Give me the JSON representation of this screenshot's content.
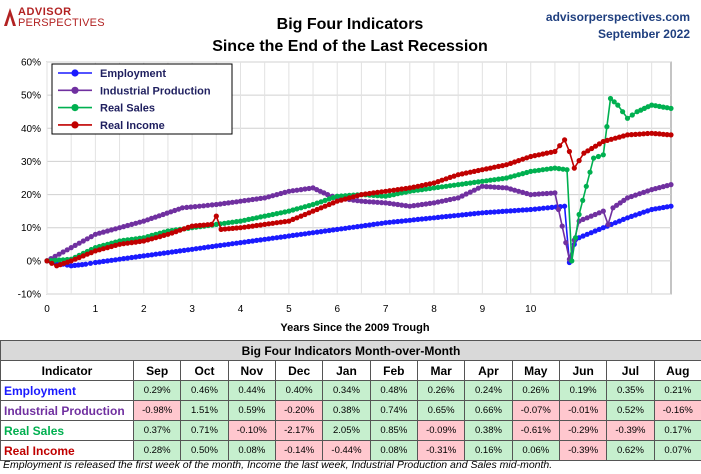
{
  "header": {
    "logo_line1": "ADVISOR",
    "logo_line2": "PERSPECTIVES",
    "title_line1": "Big Four Indicators",
    "title_line2": "Since the End of the Last Recession",
    "site": "advisorperspectives.com",
    "date": "September 2022"
  },
  "colors": {
    "Employment": "#1a1aff",
    "Industrial Production": "#7030a0",
    "Real Sales": "#00b050",
    "Real Income": "#c00000",
    "positive_cell": "#c6efce",
    "negative_cell": "#ffc7ce"
  },
  "chart_data": {
    "type": "line",
    "title": "Big Four Indicators Since the End of the Last Recession",
    "xlabel": "Years Since the 2009 Trough",
    "ylabel": "",
    "xlim": [
      0,
      12.9
    ],
    "ylim": [
      -10,
      60
    ],
    "x_ticks": [
      0,
      1,
      2,
      3,
      4,
      5,
      6,
      7,
      8,
      9,
      10
    ],
    "y_ticks": [
      "-10%",
      "0%",
      "10%",
      "20%",
      "30%",
      "40%",
      "50%",
      "60%"
    ],
    "y_tick_values": [
      -10,
      0,
      10,
      20,
      30,
      40,
      50,
      60
    ],
    "grid": true,
    "legend_position": "top-left",
    "series": [
      {
        "name": "Employment",
        "color": "#1a1aff",
        "x": [
          0,
          0.5,
          0.8,
          1,
          2,
          3,
          4,
          5,
          6,
          7,
          8,
          9,
          10,
          10.7,
          10.8,
          10.9,
          11.0,
          11.5,
          12,
          12.5,
          12.9
        ],
        "y": [
          0,
          -1.5,
          -1,
          -0.5,
          1.5,
          3.5,
          5.5,
          7.5,
          9.5,
          11.5,
          13,
          14.5,
          15.5,
          16.5,
          -0.5,
          5,
          7,
          10,
          13,
          15.5,
          16.5
        ]
      },
      {
        "name": "Industrial Production",
        "color": "#7030a0",
        "x": [
          0,
          0.5,
          1,
          2,
          2.8,
          3.5,
          4,
          4.5,
          5,
          5.5,
          5.8,
          6,
          6.5,
          7,
          7.5,
          8,
          8.5,
          9,
          9.5,
          10,
          10.5,
          10.8,
          11.0,
          11.5,
          11.6,
          11.7,
          12,
          12.5,
          12.9
        ],
        "y": [
          0,
          4,
          8,
          12,
          16,
          17,
          18,
          19,
          21,
          22,
          20,
          19,
          18,
          17.5,
          16.5,
          17.5,
          19,
          22.5,
          22,
          20,
          20.5,
          0.5,
          12,
          15,
          11,
          16,
          19,
          21.5,
          23
        ]
      },
      {
        "name": "Real Sales",
        "color": "#00b050",
        "x": [
          0,
          0.5,
          1,
          1.5,
          2,
          2.5,
          3,
          3.5,
          4,
          4.5,
          5,
          5.5,
          6,
          6.5,
          7,
          7.5,
          8,
          8.5,
          9,
          9.5,
          10,
          10.5,
          10.75,
          10.85,
          11.0,
          11.3,
          11.5,
          11.65,
          11.8,
          12,
          12.2,
          12.5,
          12.9
        ],
        "y": [
          0,
          0.5,
          4,
          6,
          7,
          9,
          10,
          11,
          12,
          13.5,
          15,
          17,
          19.5,
          20,
          19.5,
          21,
          22,
          23,
          24,
          25,
          27,
          28,
          27.5,
          0,
          14,
          31,
          32,
          49,
          47,
          43,
          45,
          47,
          46
        ]
      },
      {
        "name": "Real Income",
        "color": "#c00000",
        "x": [
          0,
          0.2,
          0.5,
          1,
          1.5,
          2,
          2.5,
          3,
          3.4,
          3.5,
          3.6,
          4,
          4.5,
          5,
          5.5,
          6,
          6.5,
          7,
          7.5,
          8,
          8.5,
          9,
          9.5,
          10,
          10.5,
          10.7,
          10.8,
          10.9,
          11.1,
          11.5,
          12,
          12.5,
          12.9
        ],
        "y": [
          0,
          -1.5,
          0,
          3,
          5,
          6,
          8,
          10.5,
          11,
          13.5,
          9.5,
          10,
          11,
          12,
          15,
          18,
          20,
          21,
          22,
          23.5,
          26,
          27.5,
          29,
          31.5,
          33,
          36.5,
          33,
          28,
          32.5,
          36,
          38,
          38.5,
          38
        ]
      }
    ]
  },
  "table": {
    "caption": "Big Four Indicators Month-over-Month",
    "header": [
      "Indicator",
      "Sep",
      "Oct",
      "Nov",
      "Dec",
      "Jan",
      "Feb",
      "Mar",
      "Apr",
      "May",
      "Jun",
      "Jul",
      "Aug"
    ],
    "rows": [
      {
        "name": "Employment",
        "values": [
          "0.29%",
          "0.46%",
          "0.44%",
          "0.40%",
          "0.34%",
          "0.48%",
          "0.26%",
          "0.24%",
          "0.26%",
          "0.19%",
          "0.35%",
          "0.21%"
        ]
      },
      {
        "name": "Industrial Production",
        "values": [
          "-0.98%",
          "1.51%",
          "0.59%",
          "-0.20%",
          "0.38%",
          "0.74%",
          "0.65%",
          "0.66%",
          "-0.07%",
          "-0.01%",
          "0.52%",
          "-0.16%"
        ]
      },
      {
        "name": "Real Sales",
        "values": [
          "0.37%",
          "0.71%",
          "-0.10%",
          "-2.17%",
          "2.05%",
          "0.85%",
          "-0.09%",
          "0.38%",
          "-0.61%",
          "-0.29%",
          "-0.39%",
          "0.17%"
        ]
      },
      {
        "name": "Real Income",
        "values": [
          "0.28%",
          "0.50%",
          "0.08%",
          "-0.14%",
          "-0.44%",
          "0.08%",
          "-0.31%",
          "0.16%",
          "0.06%",
          "-0.39%",
          "0.62%",
          "0.07%"
        ]
      }
    ]
  },
  "footnote": "Employment is released the first week of the month, Income the last week, Industrial Production and Sales mid-month."
}
